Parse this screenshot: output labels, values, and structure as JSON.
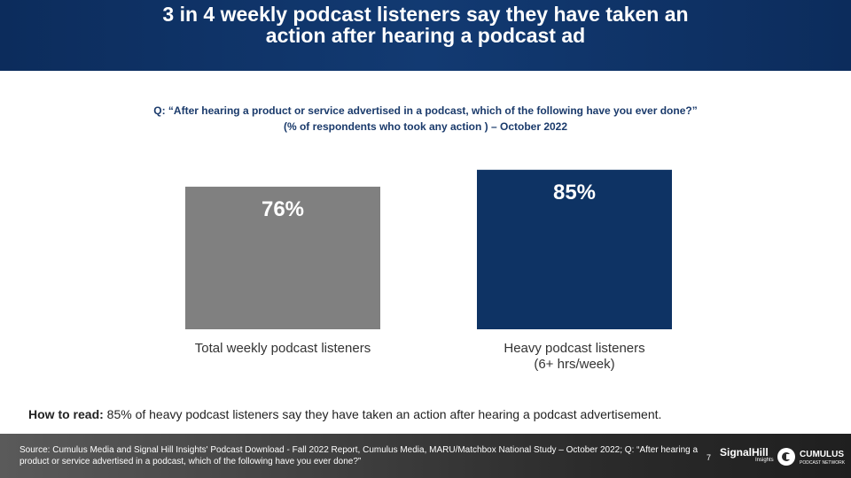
{
  "header": {
    "title": "3 in 4 weekly podcast listeners say they have taken an action after hearing a podcast ad"
  },
  "question": {
    "line1": "Q: “After hearing a product or service advertised in a podcast, which of the following have you ever done?”",
    "line2": "(% of respondents who took any action ) – October 2022"
  },
  "chart_data": {
    "type": "bar",
    "categories": [
      "Total weekly podcast listeners",
      "Heavy podcast listeners (6+ hrs/week)"
    ],
    "category_lines": [
      [
        "Total weekly podcast listeners"
      ],
      [
        "Heavy podcast listeners",
        "(6+ hrs/week)"
      ]
    ],
    "values": [
      76,
      85
    ],
    "value_labels": [
      "76%",
      "85%"
    ],
    "colors": [
      "#808080",
      "#0e3364"
    ],
    "ylim": [
      0,
      100
    ],
    "grid": false
  },
  "how_to_read": {
    "label": "How to read:",
    "text": " 85% of heavy podcast listeners say they have taken an action after hearing a podcast advertisement."
  },
  "footer": {
    "source": "Source: Cumulus Media and Signal Hill Insights' Podcast Download - Fall 2022 Report, Cumulus Media, MARU/Matchbox National Study – October 2022; Q: “After hearing a product or service advertised in a podcast, which of the following have you ever done?”",
    "page_number": "7",
    "logo1_name": "SignalHill",
    "logo1_sub": "Insights",
    "logo2_name": "CUMULUS",
    "logo2_sub": "PODCAST NETWORK"
  }
}
